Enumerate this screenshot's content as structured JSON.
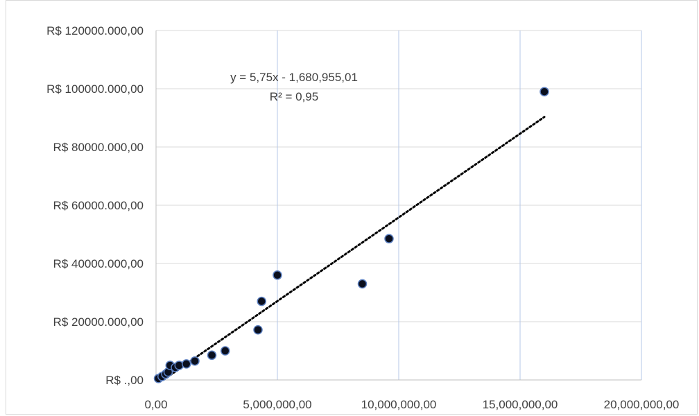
{
  "chart_data": {
    "type": "scatter",
    "title": "",
    "xlabel": "",
    "ylabel": "",
    "xlim": [
      0,
      20000000
    ],
    "ylim": [
      0,
      120000000
    ],
    "x_tick_values": [
      0,
      5000000,
      10000000,
      15000000,
      20000000
    ],
    "x_tick_labels": [
      "0,00",
      "5,000,000,00",
      "10,000,000,00",
      "15,000,000,00",
      "20,000,000,00"
    ],
    "y_tick_values": [
      0,
      20000000,
      40000000,
      60000000,
      80000000,
      100000000,
      120000000
    ],
    "y_tick_labels": [
      "R$ .,00",
      "R$ 20000.000,00",
      "R$ 40000.000,00",
      "R$ 60000.000,00",
      "R$ 80000.000,00",
      "R$ 100000.000,00",
      "R$ 120000.000,00"
    ],
    "grid": {
      "horizontal": true,
      "vertical": true
    },
    "legend": "none",
    "colors": {
      "marker_fill": "#0a0f1e",
      "marker_stroke": "#5b7fc0",
      "gridline": "#d9d9d9",
      "vertical_gridline": "#b4c7e7",
      "trendline": "#000000"
    },
    "series": [
      {
        "points": [
          {
            "x": 100000,
            "y": 500000
          },
          {
            "x": 250000,
            "y": 1200000
          },
          {
            "x": 400000,
            "y": 2000000
          },
          {
            "x": 500000,
            "y": 2700000
          },
          {
            "x": 580000,
            "y": 5000000
          },
          {
            "x": 800000,
            "y": 4300000
          },
          {
            "x": 950000,
            "y": 5000000
          },
          {
            "x": 1250000,
            "y": 5500000
          },
          {
            "x": 1600000,
            "y": 6500000
          },
          {
            "x": 2300000,
            "y": 8500000
          },
          {
            "x": 2850000,
            "y": 10000000
          },
          {
            "x": 4200000,
            "y": 17200000
          },
          {
            "x": 4350000,
            "y": 27000000
          },
          {
            "x": 5000000,
            "y": 36000000
          },
          {
            "x": 8500000,
            "y": 33000000
          },
          {
            "x": 9600000,
            "y": 48500000
          },
          {
            "x": 16000000,
            "y": 99000000
          }
        ]
      }
    ],
    "trendline": {
      "type": "linear",
      "style": "dotted",
      "slope": 5.75,
      "intercept": -1680955.01,
      "x_range": [
        300000,
        16000000
      ],
      "equation_label": "y = 5,75x - 1,680,955,01",
      "r2_label": "R² = 0,95"
    }
  }
}
